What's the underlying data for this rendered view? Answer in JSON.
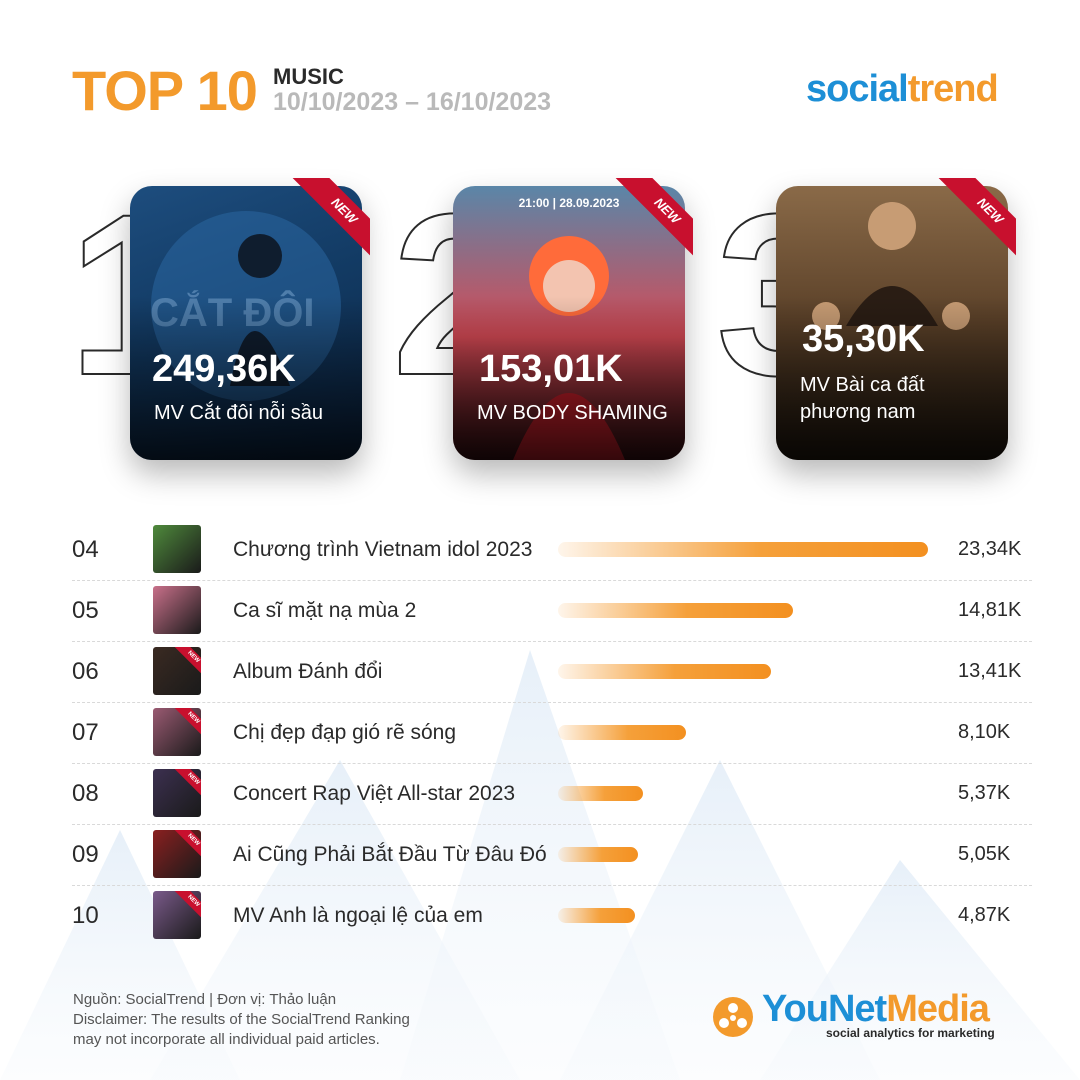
{
  "header": {
    "title": "TOP 10",
    "category": "MUSIC",
    "date_range": "10/10/2023 – 16/10/2023"
  },
  "brand": {
    "part1": "social",
    "part2": "trend"
  },
  "top3": [
    {
      "rank": "1",
      "value": "249,36K",
      "label": "MV Cắt đôi nỗi sầu",
      "badge": "NEW",
      "overtext": ""
    },
    {
      "rank": "2",
      "value": "153,01K",
      "label": "MV BODY SHAMING",
      "badge": "NEW",
      "overtext": "21:00 | 28.09.2023"
    },
    {
      "rank": "3",
      "value": "35,30K",
      "label": "MV Bài ca đất phương nam",
      "badge": "NEW",
      "overtext": ""
    }
  ],
  "chart_data": {
    "type": "bar",
    "orientation": "horizontal",
    "unit": "K",
    "categories": [
      "Chương trình Vietnam idol 2023",
      "Ca sĩ mặt nạ mùa 2",
      "Album Đánh đổi",
      "Chị đẹp đạp gió rẽ sóng",
      "Concert Rap Việt All-star 2023",
      "Ai Cũng Phải Bắt Đầu Từ Đâu Đó",
      "MV Anh là ngoại lệ của em"
    ],
    "ranks": [
      "04",
      "05",
      "06",
      "07",
      "08",
      "09",
      "10"
    ],
    "values": [
      23.34,
      14.81,
      13.41,
      8.1,
      5.37,
      5.05,
      4.87
    ],
    "value_labels": [
      "23,34K",
      "14,81K",
      "13,41K",
      "8,10K",
      "5,37K",
      "5,05K",
      "4,87K"
    ],
    "is_new": [
      false,
      false,
      true,
      true,
      true,
      true,
      true
    ],
    "new_label": "NEW",
    "grid": false,
    "colors": {
      "bar": "#f39a2c"
    }
  },
  "footer": {
    "line1": "Nguồn: SocialTrend |  Đơn vị: Thảo luận",
    "line2": "Disclaimer: The results of the SocialTrend Ranking",
    "line3": "may not incorporate all individual paid articles."
  },
  "younet": {
    "part1": "YouNet",
    "part2": "Media",
    "tagline": "social analytics for marketing"
  },
  "colors": {
    "accent": "#f39a2c",
    "brand_blue": "#1d8fd6",
    "ribbon_red": "#c8102e",
    "text": "#2a2a2a"
  }
}
